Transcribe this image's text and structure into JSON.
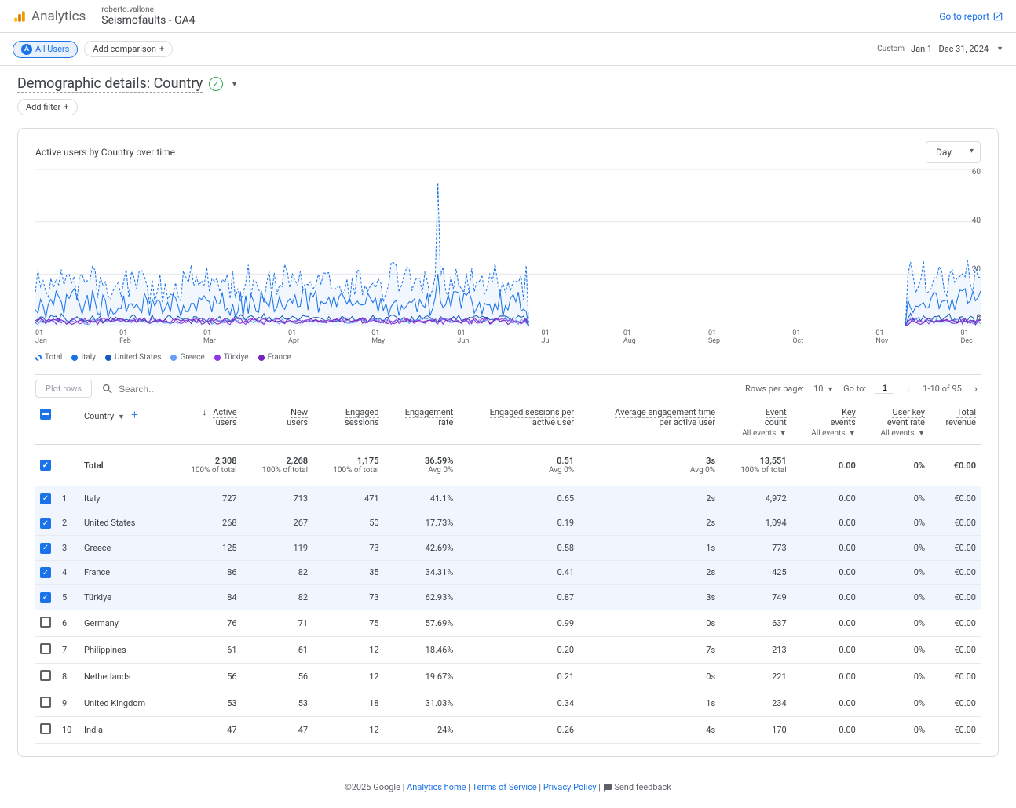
{
  "header": {
    "product": "Analytics",
    "account": "roberto.vallone",
    "property": "Seismofaults - GA4",
    "go_to_report": "Go to report"
  },
  "toolbar": {
    "all_users_badge": "A",
    "all_users": "All Users",
    "add_comparison": "Add comparison",
    "date_label": "Custom",
    "date_range": "Jan 1 - Dec 31, 2024"
  },
  "page": {
    "title": "Demographic details: Country",
    "add_filter": "Add filter"
  },
  "chart": {
    "title": "Active users by Country over time",
    "granularity": "Day",
    "y_max": 60,
    "y_ticks": [
      0,
      20,
      40,
      60
    ],
    "x_labels": [
      "01\nJan",
      "01\nFeb",
      "01\nMar",
      "01\nApr",
      "01\nMay",
      "01\nJun",
      "01\nJul",
      "01\nAug",
      "01\nSep",
      "01\nOct",
      "01\nNov",
      "01\nDec"
    ],
    "legend": [
      {
        "label": "Total",
        "color": "#1a73e8",
        "dashed": true
      },
      {
        "label": "Italy",
        "color": "#1a73e8"
      },
      {
        "label": "United States",
        "color": "#185abc"
      },
      {
        "label": "Greece",
        "color": "#669df6"
      },
      {
        "label": "Türkiye",
        "color": "#9334e6"
      },
      {
        "label": "France",
        "color": "#7627bb"
      }
    ],
    "colors": {
      "total": "#1a73e8",
      "italy": "#1a73e8",
      "us": "#185abc",
      "greece": "#669df6",
      "turkiye": "#9334e6",
      "france": "#7627bb",
      "grid": "#e8eaed"
    }
  },
  "table_controls": {
    "plot_rows": "Plot rows",
    "search_placeholder": "Search...",
    "rows_per_page_label": "Rows per page:",
    "rows_per_page": "10",
    "goto_label": "Go to:",
    "goto_page": "1",
    "range": "1-10 of 95"
  },
  "table": {
    "dimension_label": "Country",
    "columns": [
      {
        "key": "active_users",
        "label": "Active users",
        "sortable": true
      },
      {
        "key": "new_users",
        "label": "New users"
      },
      {
        "key": "engaged_sessions",
        "label": "Engaged sessions"
      },
      {
        "key": "engagement_rate",
        "label": "Engagement rate"
      },
      {
        "key": "eng_sessions_per_user",
        "label": "Engaged sessions per active user"
      },
      {
        "key": "avg_eng_time",
        "label": "Average engagement time per active user"
      },
      {
        "key": "event_count",
        "label": "Event count",
        "sub": "All events"
      },
      {
        "key": "key_events",
        "label": "Key events",
        "sub": "All events"
      },
      {
        "key": "user_key_event_rate",
        "label": "User key event rate",
        "sub": "All events"
      },
      {
        "key": "total_revenue",
        "label": "Total revenue"
      }
    ],
    "total_label": "Total",
    "total": {
      "active_users": "2,308",
      "active_users_sub": "100% of total",
      "new_users": "2,268",
      "new_users_sub": "100% of total",
      "engaged_sessions": "1,175",
      "engaged_sessions_sub": "100% of total",
      "engagement_rate": "36.59%",
      "engagement_rate_sub": "Avg 0%",
      "eng_sessions_per_user": "0.51",
      "eng_sessions_per_user_sub": "Avg 0%",
      "avg_eng_time": "3s",
      "avg_eng_time_sub": "Avg 0%",
      "event_count": "13,551",
      "event_count_sub": "100% of total",
      "key_events": "0.00",
      "user_key_event_rate": "0%",
      "total_revenue": "€0.00"
    },
    "rows": [
      {
        "n": "1",
        "checked": true,
        "country": "Italy",
        "active_users": "727",
        "new_users": "713",
        "engaged_sessions": "471",
        "engagement_rate": "41.1%",
        "eng_sessions_per_user": "0.65",
        "avg_eng_time": "2s",
        "event_count": "4,972",
        "key_events": "0.00",
        "user_key_event_rate": "0%",
        "total_revenue": "€0.00"
      },
      {
        "n": "2",
        "checked": true,
        "country": "United States",
        "active_users": "268",
        "new_users": "267",
        "engaged_sessions": "50",
        "engagement_rate": "17.73%",
        "eng_sessions_per_user": "0.19",
        "avg_eng_time": "2s",
        "event_count": "1,094",
        "key_events": "0.00",
        "user_key_event_rate": "0%",
        "total_revenue": "€0.00"
      },
      {
        "n": "3",
        "checked": true,
        "country": "Greece",
        "active_users": "125",
        "new_users": "119",
        "engaged_sessions": "73",
        "engagement_rate": "42.69%",
        "eng_sessions_per_user": "0.58",
        "avg_eng_time": "1s",
        "event_count": "773",
        "key_events": "0.00",
        "user_key_event_rate": "0%",
        "total_revenue": "€0.00"
      },
      {
        "n": "4",
        "checked": true,
        "country": "France",
        "active_users": "86",
        "new_users": "82",
        "engaged_sessions": "35",
        "engagement_rate": "34.31%",
        "eng_sessions_per_user": "0.41",
        "avg_eng_time": "2s",
        "event_count": "425",
        "key_events": "0.00",
        "user_key_event_rate": "0%",
        "total_revenue": "€0.00"
      },
      {
        "n": "5",
        "checked": true,
        "country": "Türkiye",
        "active_users": "84",
        "new_users": "82",
        "engaged_sessions": "73",
        "engagement_rate": "62.93%",
        "eng_sessions_per_user": "0.87",
        "avg_eng_time": "3s",
        "event_count": "749",
        "key_events": "0.00",
        "user_key_event_rate": "0%",
        "total_revenue": "€0.00"
      },
      {
        "n": "6",
        "checked": false,
        "country": "Germany",
        "active_users": "76",
        "new_users": "71",
        "engaged_sessions": "75",
        "engagement_rate": "57.69%",
        "eng_sessions_per_user": "0.99",
        "avg_eng_time": "0s",
        "event_count": "637",
        "key_events": "0.00",
        "user_key_event_rate": "0%",
        "total_revenue": "€0.00"
      },
      {
        "n": "7",
        "checked": false,
        "country": "Philippines",
        "active_users": "61",
        "new_users": "61",
        "engaged_sessions": "12",
        "engagement_rate": "18.46%",
        "eng_sessions_per_user": "0.20",
        "avg_eng_time": "7s",
        "event_count": "213",
        "key_events": "0.00",
        "user_key_event_rate": "0%",
        "total_revenue": "€0.00"
      },
      {
        "n": "8",
        "checked": false,
        "country": "Netherlands",
        "active_users": "56",
        "new_users": "56",
        "engaged_sessions": "12",
        "engagement_rate": "19.67%",
        "eng_sessions_per_user": "0.21",
        "avg_eng_time": "0s",
        "event_count": "221",
        "key_events": "0.00",
        "user_key_event_rate": "0%",
        "total_revenue": "€0.00"
      },
      {
        "n": "9",
        "checked": false,
        "country": "United Kingdom",
        "active_users": "53",
        "new_users": "53",
        "engaged_sessions": "18",
        "engagement_rate": "31.03%",
        "eng_sessions_per_user": "0.34",
        "avg_eng_time": "1s",
        "event_count": "234",
        "key_events": "0.00",
        "user_key_event_rate": "0%",
        "total_revenue": "€0.00"
      },
      {
        "n": "10",
        "checked": false,
        "country": "India",
        "active_users": "47",
        "new_users": "47",
        "engaged_sessions": "12",
        "engagement_rate": "24%",
        "eng_sessions_per_user": "0.26",
        "avg_eng_time": "4s",
        "event_count": "170",
        "key_events": "0.00",
        "user_key_event_rate": "0%",
        "total_revenue": "€0.00"
      }
    ]
  },
  "footer": {
    "copyright": "©2025 Google",
    "links": [
      "Analytics home",
      "Terms of Service",
      "Privacy Policy"
    ],
    "feedback": "Send feedback"
  }
}
